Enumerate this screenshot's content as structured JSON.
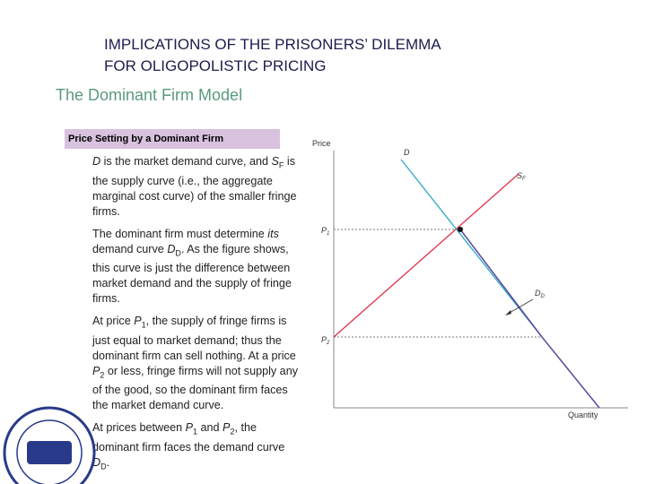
{
  "header": {
    "title_lines": [
      "IMPLICATIONS OF THE PRISONERS’ DILEMMA",
      "FOR OLIGOPOLISTIC PRICING"
    ],
    "subtitle": "The Dominant Firm Model"
  },
  "figure_caption": "Price Setting by a Dominant Firm",
  "paragraphs": [
    [
      "D",
      " is the market demand curve, and ",
      "S",
      "F",
      " is the supply curve (i.e., the aggregate marginal cost curve) of the smaller fringe firms."
    ],
    [
      "The dominant firm must determine ",
      "its",
      " demand curve ",
      "D",
      "D",
      ". As the figure shows, this curve is just the difference between market demand and the supply of fringe firms."
    ],
    [
      "At price ",
      "P",
      "1",
      ", the supply of fringe firms is just equal to market demand; thus the dominant firm can sell nothing. At a price ",
      "P",
      "2",
      " or less, fringe firms will not supply any of the good, so the dominant firm faces the market demand curve."
    ],
    [
      "At prices between ",
      "P",
      "1",
      " and ",
      "P",
      "2",
      ", the dominant firm faces the demand curve ",
      "D",
      "D",
      "."
    ]
  ],
  "diagram": {
    "y_axis": "Price",
    "x_axis": "Quantity",
    "demand": "D",
    "supply": [
      "S",
      "F"
    ],
    "p1": [
      "P",
      "1"
    ],
    "p2": [
      "P",
      "2"
    ],
    "dominant_demand": [
      "D",
      "D"
    ]
  }
}
